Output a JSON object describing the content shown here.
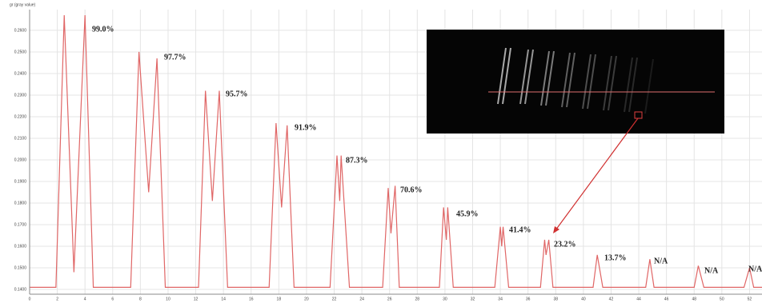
{
  "chart_data": {
    "type": "line",
    "y_axis_label": "gr (gray value)",
    "x": [
      0,
      1.9,
      2.5,
      3.2,
      4.0,
      4.6,
      7.3,
      7.9,
      8.6,
      9.2,
      9.8,
      12.2,
      12.7,
      13.2,
      13.7,
      14.3,
      17.3,
      17.8,
      18.2,
      18.6,
      19.1,
      21.7,
      22.2,
      22.4,
      22.5,
      23.1,
      25.5,
      25.9,
      26.1,
      26.4,
      26.7,
      29.6,
      29.9,
      30.1,
      30.2,
      30.6,
      33.6,
      34.0,
      34.1,
      34.2,
      34.6,
      36.9,
      37.2,
      37.3,
      37.5,
      37.8,
      40.7,
      41.0,
      41.4,
      44.5,
      44.8,
      45.1,
      48.0,
      48.3,
      48.7,
      51.6,
      52.0,
      52.3,
      52.9
    ],
    "series": [
      {
        "color": "#e06666",
        "values": [
          0.141,
          0.141,
          0.267,
          0.148,
          0.267,
          0.141,
          0.141,
          0.25,
          0.185,
          0.247,
          0.141,
          0.141,
          0.232,
          0.181,
          0.232,
          0.141,
          0.141,
          0.217,
          0.178,
          0.216,
          0.141,
          0.141,
          0.202,
          0.181,
          0.202,
          0.141,
          0.141,
          0.187,
          0.166,
          0.188,
          0.141,
          0.141,
          0.178,
          0.163,
          0.178,
          0.141,
          0.141,
          0.169,
          0.16,
          0.169,
          0.141,
          0.141,
          0.163,
          0.156,
          0.163,
          0.141,
          0.141,
          0.156,
          0.141,
          0.141,
          0.154,
          0.141,
          0.141,
          0.151,
          0.141,
          0.141,
          0.15,
          0.141,
          0.141
        ]
      }
    ],
    "xlim": [
      0,
      52.9
    ],
    "xticks": [
      0,
      2,
      4,
      6,
      8,
      10,
      12,
      14,
      16,
      18,
      20,
      22,
      24,
      26,
      28,
      30,
      32,
      34,
      36,
      38,
      40,
      42,
      44,
      46,
      48,
      50,
      52
    ],
    "ylim": [
      0.1378,
      0.2696
    ],
    "yticks": [
      {
        "value": 0.14,
        "label": "0.1400"
      },
      {
        "value": 0.15,
        "label": "0.1500"
      },
      {
        "value": 0.16,
        "label": "0.1600"
      },
      {
        "value": 0.17,
        "label": "0.1700"
      },
      {
        "value": 0.18,
        "label": "0.1800"
      },
      {
        "value": 0.19,
        "label": "0.1900"
      },
      {
        "value": 0.2,
        "label": "0.2000"
      },
      {
        "value": 0.21,
        "label": "0.2100"
      },
      {
        "value": 0.22,
        "label": "0.2200"
      },
      {
        "value": 0.23,
        "label": "0.2300"
      },
      {
        "value": 0.24,
        "label": "0.2400"
      },
      {
        "value": 0.25,
        "label": "0.2500"
      },
      {
        "value": 0.26,
        "label": "0.2600"
      }
    ],
    "grid": true,
    "annotations": [
      "99.0%",
      "97.7%",
      "95.7%",
      "91.9%",
      "87.3%",
      "70.6%",
      "45.9%",
      "41.4%",
      "23.2%",
      "13.7%",
      "N/A",
      "N/A",
      "N/A"
    ]
  }
}
